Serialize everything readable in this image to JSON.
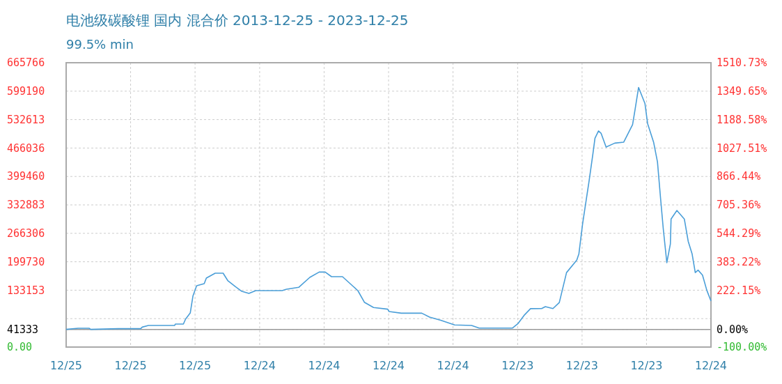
{
  "chart_data": {
    "type": "line",
    "title": "电池级碳酸锂 国内 混合价 2013-12-25 - 2023-12-25",
    "subtitle": "99.5% min",
    "x": [
      "2013-12-25",
      "2014-03-03",
      "2014-05-05",
      "2014-05-13",
      "2014-10-15",
      "2015-02-20",
      "2015-03-01",
      "2015-04-05",
      "2015-08-31",
      "2015-09-05",
      "2015-10-20",
      "2015-11-01",
      "2015-11-28",
      "2015-12-13",
      "2016-01-03",
      "2016-02-15",
      "2016-02-27",
      "2016-04-17",
      "2016-06-01",
      "2016-06-27",
      "2016-08-10",
      "2016-09-15",
      "2016-10-25",
      "2016-12-03",
      "2017-05-01",
      "2017-05-26",
      "2017-08-03",
      "2017-10-05",
      "2017-11-27",
      "2017-12-31",
      "2018-02-05",
      "2018-04-08",
      "2018-07-04",
      "2018-08-10",
      "2018-10-01",
      "2018-12-20",
      "2018-12-28",
      "2019-03-07",
      "2019-07-01",
      "2019-08-14",
      "2019-10-16",
      "2020-01-03",
      "2020-04-08",
      "2020-05-21",
      "2020-11-25",
      "2020-12-28",
      "2021-02-02",
      "2021-03-08",
      "2021-05-10",
      "2021-05-31",
      "2021-07-13",
      "2021-08-18",
      "2021-09-06",
      "2021-09-28",
      "2021-11-25",
      "2021-12-07",
      "2021-12-28",
      "2022-01-18",
      "2022-02-01",
      "2022-02-24",
      "2022-03-08",
      "2022-03-28",
      "2022-04-12",
      "2022-05-10",
      "2022-06-28",
      "2022-08-18",
      "2022-10-07",
      "2022-10-21",
      "2022-11-10",
      "2022-12-16",
      "2022-12-31",
      "2023-02-03",
      "2023-02-25",
      "2023-03-15",
      "2023-03-30",
      "2023-04-19",
      "2023-05-09",
      "2023-05-13",
      "2023-06-15",
      "2023-07-27",
      "2023-08-18",
      "2023-09-09",
      "2023-09-27",
      "2023-10-13",
      "2023-11-07",
      "2023-12-01",
      "2023-12-25"
    ],
    "series": [
      {
        "color": "#4a9ed8",
        "values": [
          41333,
          44000,
          44000,
          41333,
          43000,
          43000,
          46700,
          50600,
          50600,
          53800,
          53800,
          65300,
          80000,
          119400,
          143600,
          148500,
          161500,
          173000,
          173000,
          155800,
          141300,
          130500,
          125600,
          132200,
          132200,
          135400,
          139800,
          163200,
          175600,
          175600,
          164800,
          164800,
          132200,
          104900,
          92500,
          88800,
          83200,
          79300,
          79300,
          70200,
          62700,
          51700,
          50600,
          44400,
          44400,
          55400,
          75300,
          89900,
          90200,
          94500,
          90200,
          104300,
          136900,
          174400,
          203700,
          218400,
          288500,
          346000,
          383900,
          451400,
          489000,
          506000,
          500300,
          468200,
          477500,
          479800,
          520600,
          555800,
          607900,
          570400,
          523500,
          479800,
          433500,
          346000,
          276100,
          197500,
          241200,
          299900,
          319800,
          299900,
          247700,
          218400,
          174400,
          180100,
          168500,
          133600,
          107600
        ]
      }
    ],
    "xlim": [
      "2013-12-25",
      "2023-12-25"
    ],
    "xticks": [
      {
        "value": "2013-12-25",
        "label": "12/25"
      },
      {
        "value": "2014-12-25",
        "label": "12/25"
      },
      {
        "value": "2015-12-25",
        "label": "12/25"
      },
      {
        "value": "2016-12-25",
        "label": "12/24"
      },
      {
        "value": "2017-12-25",
        "label": "12/24"
      },
      {
        "value": "2018-12-25",
        "label": "12/24"
      },
      {
        "value": "2019-12-25",
        "label": "12/24"
      },
      {
        "value": "2020-12-25",
        "label": "12/23"
      },
      {
        "value": "2021-12-25",
        "label": "12/23"
      },
      {
        "value": "2022-12-25",
        "label": "12/23"
      },
      {
        "value": "2023-12-25",
        "label": "12/24"
      }
    ],
    "ylim": [
      0,
      665766
    ],
    "yticks": [
      {
        "value": 0,
        "label": "0.00"
      },
      41333,
      {
        "value": 66577,
        "label": null
      },
      133153,
      199730,
      266306,
      332883,
      399460,
      466036,
      532613,
      599190,
      665766
    ],
    "y2lim": [
      -100,
      1510.73
    ],
    "y2ticks": [
      {
        "value": -100,
        "label": "-100.00%"
      },
      {
        "value": 0,
        "label": "0.00%"
      },
      {
        "value": 222.15,
        "label": "222.15%"
      },
      {
        "value": 383.22,
        "label": "383.22%"
      },
      {
        "value": 544.29,
        "label": "544.29%"
      },
      {
        "value": 705.36,
        "label": "705.36%"
      },
      {
        "value": 866.44,
        "label": "866.44%"
      },
      {
        "value": 1027.51,
        "label": "1027.51%"
      },
      {
        "value": 1188.58,
        "label": "1188.58%"
      },
      {
        "value": 1349.65,
        "label": "1349.65%"
      },
      {
        "value": 1510.73,
        "label": "1510.73%"
      }
    ],
    "ref_lines": [
      {
        "axis": "y",
        "value": 41333,
        "color": "#999999"
      }
    ],
    "grid": true,
    "marker": "none",
    "line_style": "solid"
  }
}
